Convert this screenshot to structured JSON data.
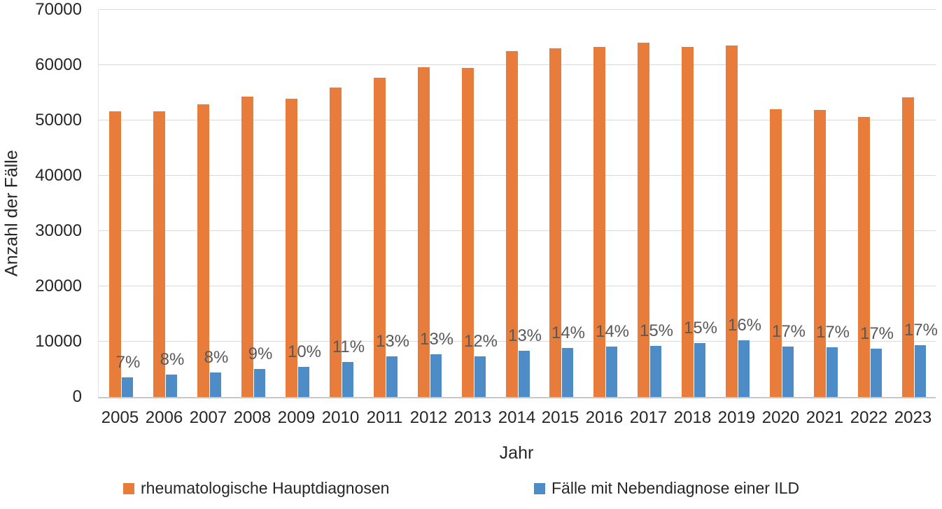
{
  "chart_data": {
    "type": "bar",
    "title": "",
    "xlabel": "Jahr",
    "ylabel": "Anzahl der Fälle",
    "ylim": [
      0,
      70000
    ],
    "yticks": [
      0,
      10000,
      20000,
      30000,
      40000,
      50000,
      60000,
      70000
    ],
    "grid": true,
    "legend_position": "bottom",
    "categories": [
      "2005",
      "2006",
      "2007",
      "2008",
      "2009",
      "2010",
      "2011",
      "2012",
      "2013",
      "2014",
      "2015",
      "2016",
      "2017",
      "2018",
      "2019",
      "2020",
      "2021",
      "2022",
      "2023"
    ],
    "series": [
      {
        "name": "rheumatologische Hauptdiagnosen",
        "color": "#e87d3b",
        "values": [
          51600,
          51600,
          52900,
          54300,
          53900,
          55900,
          57700,
          59600,
          59500,
          62500,
          63100,
          63300,
          64100,
          63300,
          63600,
          52000,
          51900,
          50600,
          54200
        ]
      },
      {
        "name": "Fälle mit Nebendiagnose einer ILD",
        "color": "#4e8cc8",
        "values": [
          3600,
          4000,
          4400,
          5000,
          5400,
          6300,
          7300,
          7700,
          7400,
          8400,
          8800,
          9100,
          9300,
          9700,
          10200,
          9100,
          9000,
          8700,
          9400
        ],
        "data_labels": [
          "7%",
          "8%",
          "8%",
          "9%",
          "10%",
          "11%",
          "13%",
          "13%",
          "12%",
          "13%",
          "14%",
          "14%",
          "15%",
          "15%",
          "16%",
          "17%",
          "17%",
          "17%",
          "17%"
        ]
      }
    ]
  },
  "legend": [
    {
      "label": "rheumatologische Hauptdiagnosen",
      "color": "#e87d3b"
    },
    {
      "label": "Fälle mit Nebendiagnose einer ILD",
      "color": "#4e8cc8"
    }
  ],
  "colors": {
    "gridline": "#d9d9d9",
    "axis_line": "#c9c9c9",
    "axis_text": "#262626",
    "data_label_text": "#595959",
    "background": "#ffffff"
  }
}
